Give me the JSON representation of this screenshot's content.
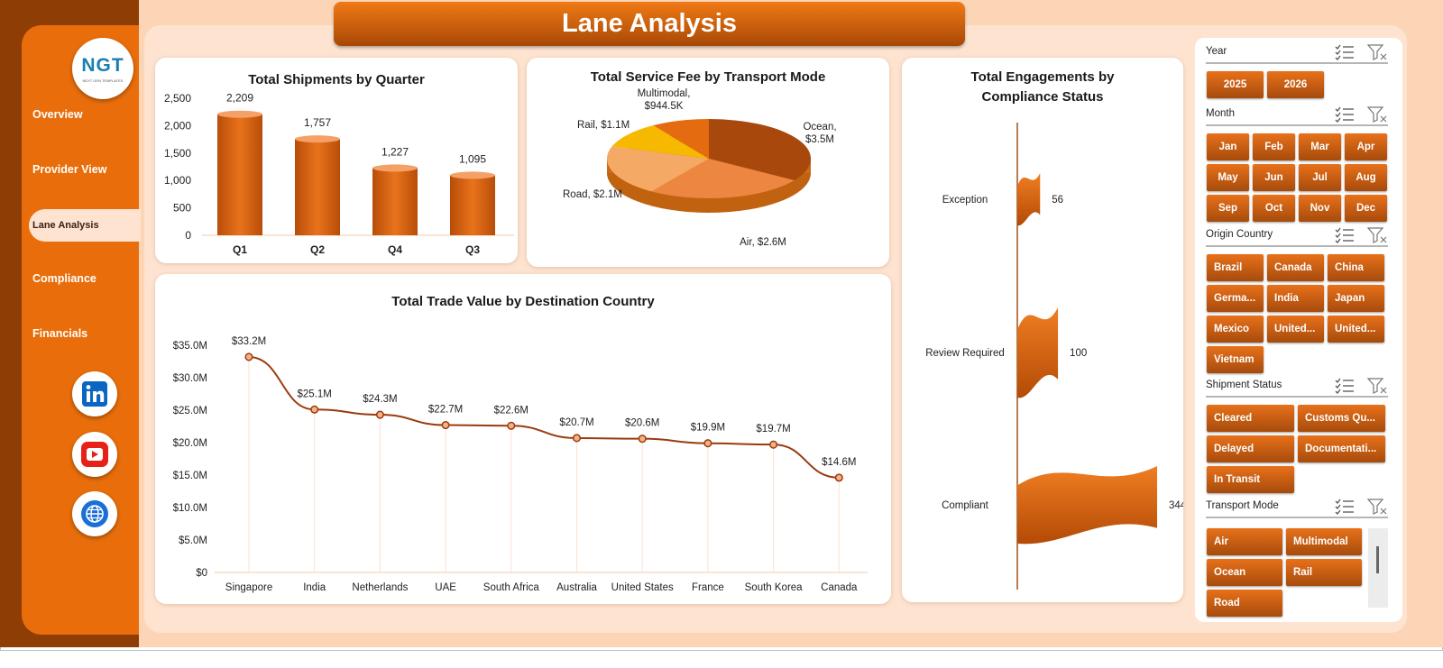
{
  "app": {
    "title": "Lane Analysis",
    "logo_text": "NGT",
    "logo_sub": "NEXT GEN TEMPLATES"
  },
  "nav": {
    "items": [
      {
        "label": "Overview"
      },
      {
        "label": "Provider View"
      },
      {
        "label": "Lane Analysis"
      },
      {
        "label": "Compliance"
      },
      {
        "label": "Financials"
      }
    ],
    "active": "Lane Analysis"
  },
  "social": [
    {
      "icon": "linkedin-icon",
      "color": "#0a66c2"
    },
    {
      "icon": "youtube-icon",
      "color": "#e62117"
    },
    {
      "icon": "globe-icon",
      "color": "#1a6fd6"
    }
  ],
  "colors": {
    "accent": "#e96e0b",
    "dark": "#8e3d05",
    "bar_top": "#f08a3c",
    "bar_bottom": "#b34a06",
    "line": "#9a3b0f"
  },
  "panels": {
    "shipments_title": "Total Shipments by Quarter",
    "fee_title": "Total Service Fee by Transport Mode",
    "engagements_title_1": "Total Engagements  by",
    "engagements_title_2": "Compliance Status",
    "trade_title": "Total Trade Value by Destination Country"
  },
  "chart_data": [
    {
      "type": "bar",
      "title": "Total Shipments by Quarter",
      "categories": [
        "Q1",
        "Q2",
        "Q4",
        "Q3"
      ],
      "values": [
        2209,
        1757,
        1227,
        1095
      ],
      "value_labels": [
        "2,209",
        "1,757",
        "1,227",
        "1,095"
      ],
      "ylim": [
        0,
        2500
      ],
      "yticks": [
        0,
        500,
        1000,
        1500,
        2000,
        2500
      ],
      "ytick_labels": [
        "0",
        "500",
        "1,000",
        "1,500",
        "2,000",
        "2,500"
      ],
      "grid": false
    },
    {
      "type": "pie",
      "title": "Total Service Fee by Transport Mode",
      "slices": [
        {
          "label": "Ocean",
          "value": 3.5,
          "display": "$3.5M",
          "color": "#a8480d"
        },
        {
          "label": "Air",
          "value": 2.6,
          "display": "$2.6M",
          "color": "#ec8640"
        },
        {
          "label": "Road",
          "value": 2.1,
          "display": "$2.1M",
          "color": "#f4a965"
        },
        {
          "label": "Rail",
          "value": 1.1,
          "display": "$1.1M",
          "color": "#f6b900"
        },
        {
          "label": "Multimodal",
          "value": 0.9445,
          "display": "$944.5K",
          "color": "#e46b10"
        }
      ]
    },
    {
      "type": "bar",
      "title": "Total Engagements  by Compliance Status",
      "orientation": "horizontal",
      "categories": [
        "Exception",
        "Review Required",
        "Compliant"
      ],
      "values": [
        56,
        100,
        344
      ],
      "value_labels": [
        "56",
        "100",
        "344"
      ]
    },
    {
      "type": "line",
      "title": "Total Trade Value by Destination Country",
      "categories": [
        "Singapore",
        "India",
        "Netherlands",
        "UAE",
        "South Africa",
        "Australia",
        "United States",
        "France",
        "South Korea",
        "Canada"
      ],
      "values": [
        33.2,
        25.1,
        24.3,
        22.7,
        22.6,
        20.7,
        20.6,
        19.9,
        19.7,
        14.6
      ],
      "value_labels": [
        "$33.2M",
        "$25.1M",
        "$24.3M",
        "$22.7M",
        "$22.6M",
        "$20.7M",
        "$20.6M",
        "$19.9M",
        "$19.7M",
        "$14.6M"
      ],
      "ylim": [
        0,
        35
      ],
      "yticks": [
        0,
        5,
        10,
        15,
        20,
        25,
        30,
        35
      ],
      "ytick_labels": [
        "$0",
        "$5.0M",
        "$10.0M",
        "$15.0M",
        "$20.0M",
        "$25.0M",
        "$30.0M",
        "$35.0M"
      ],
      "grid": false
    }
  ],
  "slicers": {
    "year": {
      "title": "Year",
      "options": [
        "2025",
        "2026"
      ]
    },
    "month": {
      "title": "Month",
      "options": [
        "Jan",
        "Feb",
        "Mar",
        "Apr",
        "May",
        "Jun",
        "Jul",
        "Aug",
        "Sep",
        "Oct",
        "Nov",
        "Dec"
      ]
    },
    "origin": {
      "title": "Origin Country",
      "options": [
        "Brazil",
        "Canada",
        "China",
        "Germa...",
        "India",
        "Japan",
        "Mexico",
        "United...",
        "United...",
        "Vietnam"
      ]
    },
    "status": {
      "title": "Shipment Status",
      "options": [
        "Cleared",
        "Customs Qu...",
        "Delayed",
        "Documentati...",
        "In Transit"
      ]
    },
    "transport": {
      "title": "Transport Mode",
      "options": [
        "Air",
        "Multimodal",
        "Ocean",
        "Rail",
        "Road"
      ]
    }
  }
}
